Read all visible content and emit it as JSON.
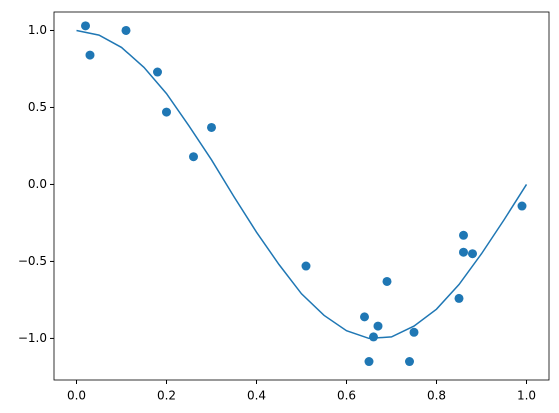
{
  "chart_data": {
    "type": "scatter",
    "series": [
      {
        "type": "line",
        "color": "#1f77b4",
        "x": [
          0,
          0.05,
          0.1,
          0.15,
          0.2,
          0.25,
          0.3,
          0.35,
          0.4,
          0.45,
          0.5,
          0.55,
          0.6,
          0.65,
          0.7,
          0.75,
          0.8,
          0.85,
          0.9,
          0.95,
          1.0
        ],
        "values": [
          1.0,
          0.97,
          0.89,
          0.76,
          0.59,
          0.38,
          0.16,
          -0.08,
          -0.31,
          -0.52,
          -0.71,
          -0.85,
          -0.95,
          -1.0,
          -0.99,
          -0.92,
          -0.81,
          -0.65,
          -0.45,
          -0.23,
          0.0
        ]
      },
      {
        "type": "scatter",
        "color": "#1f77b4",
        "x": [
          0.02,
          0.03,
          0.11,
          0.18,
          0.2,
          0.26,
          0.3,
          0.51,
          0.64,
          0.65,
          0.66,
          0.67,
          0.69,
          0.74,
          0.75,
          0.85,
          0.86,
          0.86,
          0.88,
          0.99
        ],
        "values": [
          1.03,
          0.84,
          1.0,
          0.73,
          0.47,
          0.18,
          0.37,
          -0.53,
          -0.86,
          -1.15,
          -0.99,
          -0.92,
          -0.63,
          -1.15,
          -0.96,
          -0.74,
          -0.33,
          -0.44,
          -0.45,
          -0.14
        ]
      }
    ],
    "xlim": [
      -0.05,
      1.05
    ],
    "ylim": [
      -1.27,
      1.12
    ],
    "xticks": [
      {
        "value": 0,
        "label": "0.0"
      },
      {
        "value": 0.2,
        "label": "0.2"
      },
      {
        "value": 0.4,
        "label": "0.4"
      },
      {
        "value": 0.6,
        "label": "0.6"
      },
      {
        "value": 0.8,
        "label": "0.8"
      },
      {
        "value": 1.0,
        "label": "1.0"
      }
    ],
    "yticks": [
      {
        "value": -1.0,
        "label": "−1.0"
      },
      {
        "value": -0.5,
        "label": "−0.5"
      },
      {
        "value": 0,
        "label": "0.0"
      },
      {
        "value": 0.5,
        "label": "0.5"
      },
      {
        "value": 1.0,
        "label": "1.0"
      }
    ],
    "grid": false
  }
}
